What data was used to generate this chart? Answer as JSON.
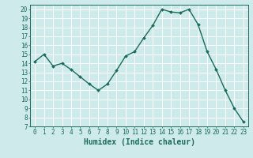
{
  "x": [
    0,
    1,
    2,
    3,
    4,
    5,
    6,
    7,
    8,
    9,
    10,
    11,
    12,
    13,
    14,
    15,
    16,
    17,
    18,
    19,
    20,
    21,
    22,
    23
  ],
  "y": [
    14.2,
    15.0,
    13.7,
    14.0,
    13.3,
    12.5,
    11.7,
    11.0,
    11.7,
    13.2,
    14.8,
    15.3,
    16.8,
    18.2,
    20.0,
    19.7,
    19.6,
    20.0,
    18.3,
    15.3,
    13.3,
    11.0,
    9.0,
    7.5
  ],
  "line_color": "#1a6b5a",
  "marker": "D",
  "marker_size": 2.0,
  "line_width": 1.0,
  "xlabel": "Humidex (Indice chaleur)",
  "xlim": [
    -0.5,
    23.5
  ],
  "ylim": [
    7,
    20.5
  ],
  "yticks": [
    7,
    8,
    9,
    10,
    11,
    12,
    13,
    14,
    15,
    16,
    17,
    18,
    19,
    20
  ],
  "xticks": [
    0,
    1,
    2,
    3,
    4,
    5,
    6,
    7,
    8,
    9,
    10,
    11,
    12,
    13,
    14,
    15,
    16,
    17,
    18,
    19,
    20,
    21,
    22,
    23
  ],
  "bg_color": "#ceeaea",
  "grid_color": "#ffffff",
  "tick_color": "#1a6b5a",
  "label_color": "#1a6b5a",
  "xlabel_fontsize": 7,
  "tick_fontsize": 5.5
}
